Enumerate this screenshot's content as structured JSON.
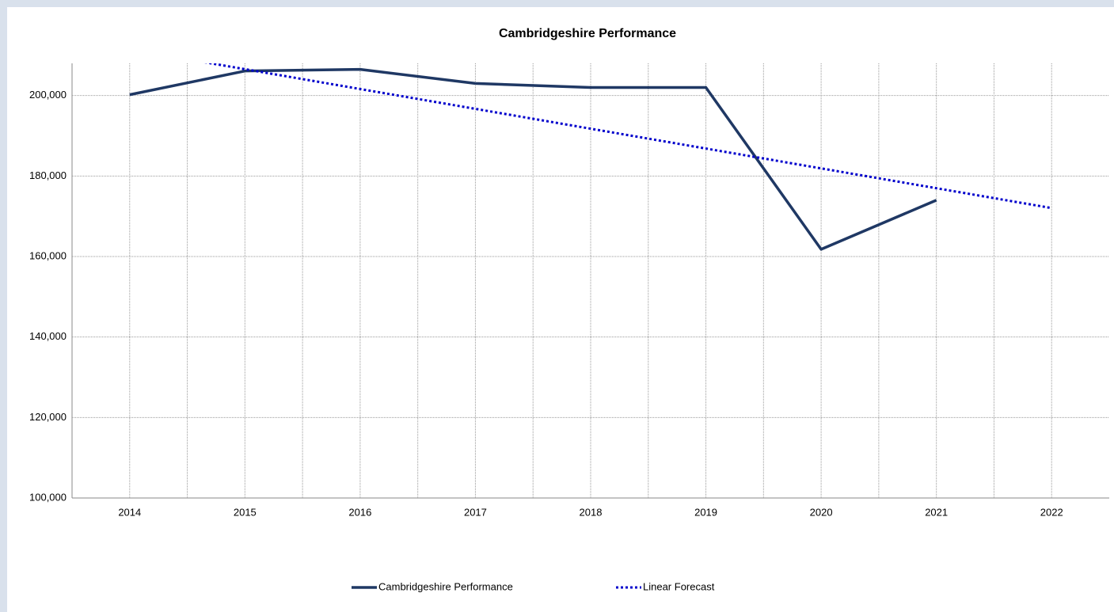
{
  "chart_data": {
    "type": "line",
    "title": "Cambridgeshire Performance",
    "x": [
      2014,
      2015,
      2016,
      2017,
      2018,
      2019,
      2020,
      2021,
      2022
    ],
    "series": [
      {
        "name": "Cambridgeshire Performance",
        "color": "#1f3864",
        "style": "solid",
        "values": [
          200200,
          206100,
          206500,
          203000,
          202000,
          202000,
          161800,
          174000,
          null
        ]
      },
      {
        "name": "Linear Forecast",
        "color": "#0000cc",
        "style": "dotted",
        "values": [
          211500,
          206550,
          201620,
          196690,
          191760,
          186830,
          181900,
          176970,
          172040
        ]
      }
    ],
    "xlim": [
      2013.5,
      2022.5
    ],
    "xticks": [
      2014,
      2015,
      2016,
      2017,
      2018,
      2019,
      2020,
      2021,
      2022
    ],
    "ylim": [
      100000,
      208000
    ],
    "yticks": [
      {
        "value": 100000,
        "label": "100,000"
      },
      {
        "value": 120000,
        "label": "120,000"
      },
      {
        "value": 140000,
        "label": "140,000"
      },
      {
        "value": 160000,
        "label": "160,000"
      },
      {
        "value": 180000,
        "label": "180,000"
      },
      {
        "value": 200000,
        "label": "200,000"
      }
    ],
    "grid": true,
    "minor_grid": true,
    "legend": "bottom"
  }
}
